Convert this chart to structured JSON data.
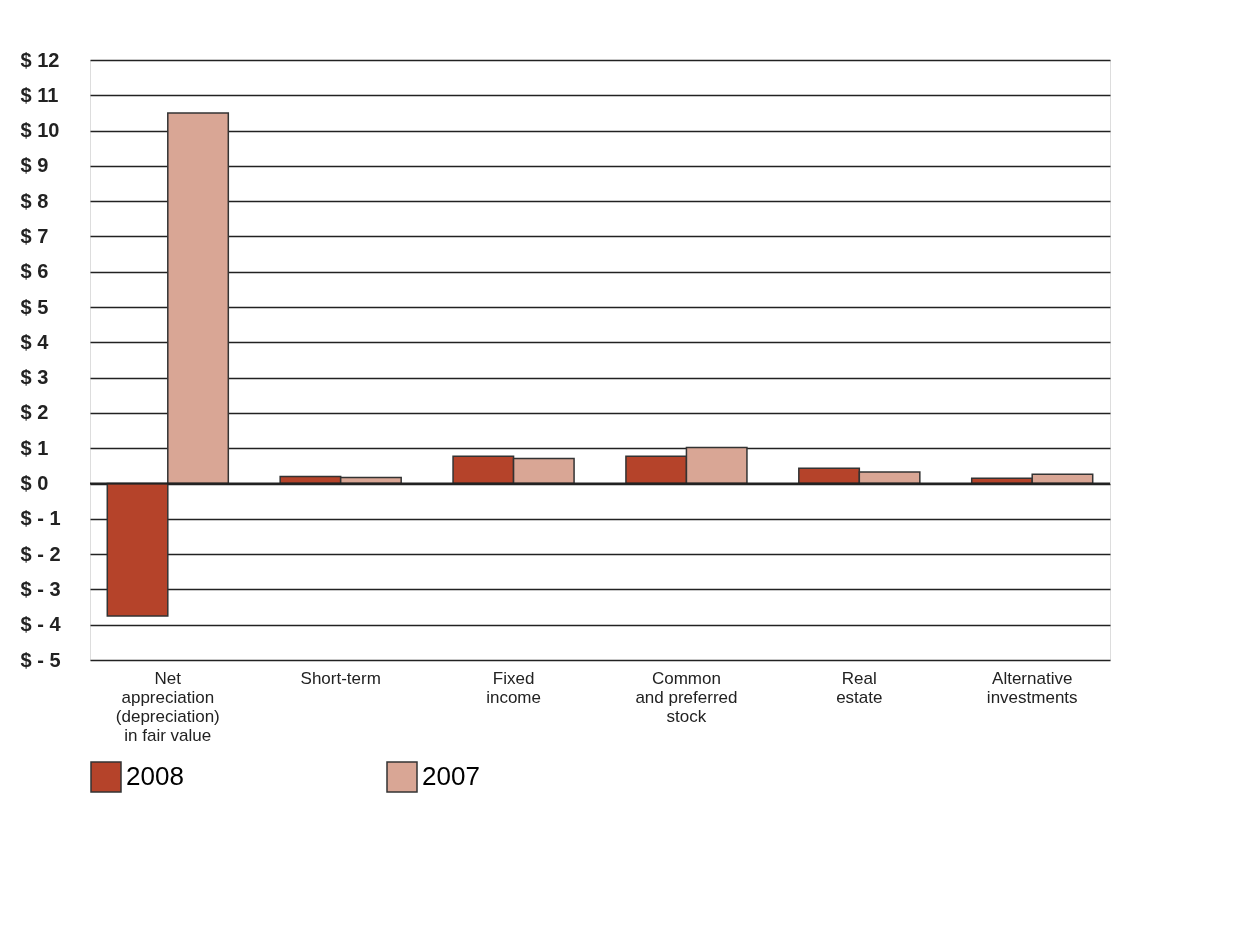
{
  "chart_data": {
    "type": "bar",
    "categories": [
      "Net\nappreciation\n(depreciation)\nin fair value",
      "Short-term",
      "Fixed\nincome",
      "Common\nand preferred\nstock",
      "Real\nestate",
      "Alternative\ninvestments"
    ],
    "series": [
      {
        "name": "2008",
        "color": "#b5432a",
        "values": [
          -3.75,
          0.2,
          0.77,
          0.77,
          0.43,
          0.15
        ]
      },
      {
        "name": "2007",
        "color": "#d9a695",
        "values": [
          10.5,
          0.17,
          0.71,
          1.02,
          0.33,
          0.26
        ]
      }
    ],
    "ylim": [
      -5,
      12
    ],
    "yticks": [
      {
        "value": 12,
        "label": "$ 12"
      },
      {
        "value": 11,
        "label": "$ 11"
      },
      {
        "value": 10,
        "label": "$ 10"
      },
      {
        "value": 9,
        "label": "$  9"
      },
      {
        "value": 8,
        "label": "$  8"
      },
      {
        "value": 7,
        "label": "$  7"
      },
      {
        "value": 6,
        "label": "$  6"
      },
      {
        "value": 5,
        "label": "$  5"
      },
      {
        "value": 4,
        "label": "$  4"
      },
      {
        "value": 3,
        "label": "$  3"
      },
      {
        "value": 2,
        "label": "$  2"
      },
      {
        "value": 1,
        "label": "$  1"
      },
      {
        "value": 0,
        "label": "$  0"
      },
      {
        "value": -1,
        "label": "$ - 1"
      },
      {
        "value": -2,
        "label": "$ - 2"
      },
      {
        "value": -3,
        "label": "$ - 3"
      },
      {
        "value": -4,
        "label": "$ - 4"
      },
      {
        "value": -5,
        "label": "$ - 5"
      }
    ],
    "grid": "y",
    "legend": "bottom"
  }
}
